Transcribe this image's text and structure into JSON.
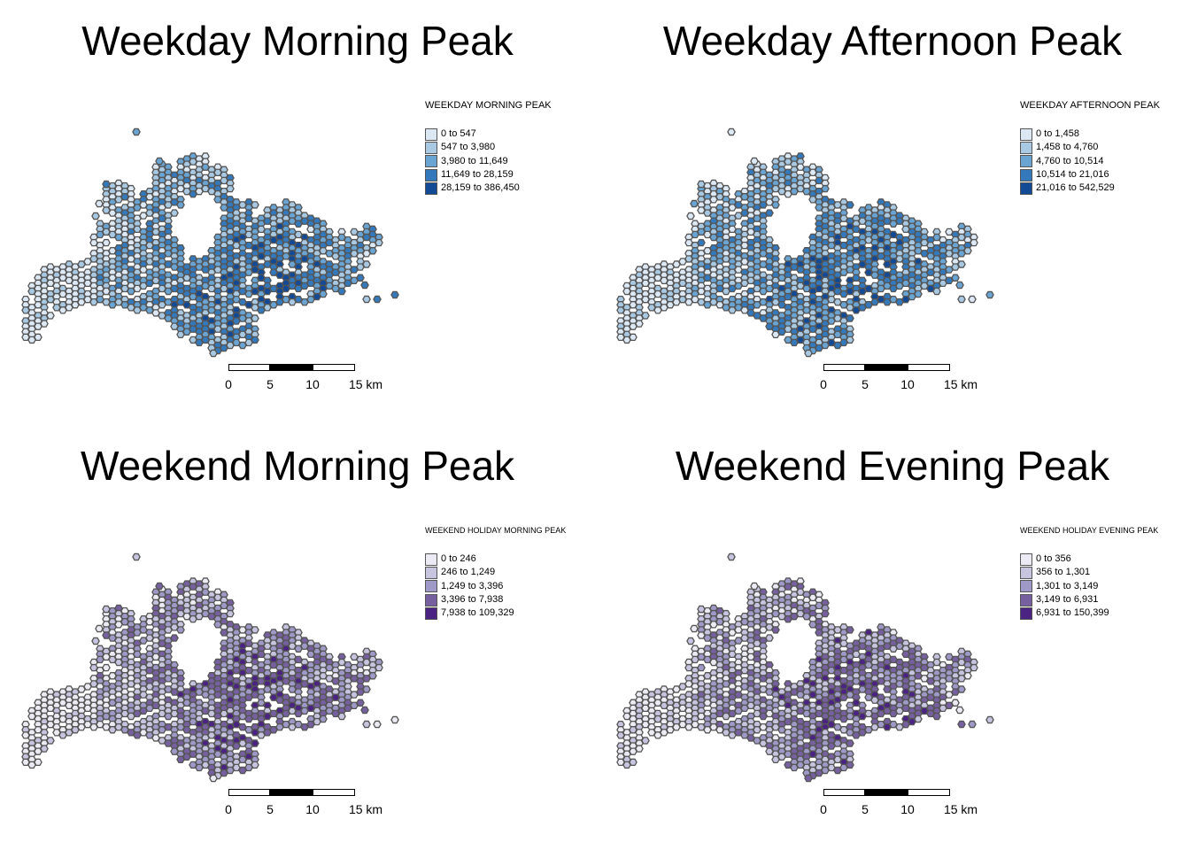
{
  "panels": [
    {
      "title": "Weekday Morning Peak",
      "legend_title": "WEEKDAY MORNING PEAK",
      "palette": "blues",
      "legend": [
        {
          "label": "0 to 547",
          "color": "#dde8f5"
        },
        {
          "label": "547 to 3,980",
          "color": "#a9c9e3"
        },
        {
          "label": "3,980 to 11,649",
          "color": "#6aa4d2"
        },
        {
          "label": "11,649 to 28,159",
          "color": "#3479bb"
        },
        {
          "label": "28,159 to 386,450",
          "color": "#134a96"
        }
      ]
    },
    {
      "title": "Weekday Afternoon Peak",
      "legend_title": "WEEKDAY AFTERNOON PEAK",
      "palette": "blues",
      "legend": [
        {
          "label": "0 to 1,458",
          "color": "#dde8f5"
        },
        {
          "label": "1,458 to 4,760",
          "color": "#a9c9e3"
        },
        {
          "label": "4,760 to 10,514",
          "color": "#6aa4d2"
        },
        {
          "label": "10,514 to 21,016",
          "color": "#3479bb"
        },
        {
          "label": "21,016 to 542,529",
          "color": "#134a96"
        }
      ]
    },
    {
      "title": "Weekend Morning Peak",
      "legend_title": "WEEKEND HOLIDAY MORNING PEAK",
      "palette": "purples",
      "legend": [
        {
          "label": "0 to 246",
          "color": "#ecebf3"
        },
        {
          "label": "246 to 1,249",
          "color": "#c6c4de"
        },
        {
          "label": "1,249 to 3,396",
          "color": "#9e99c7"
        },
        {
          "label": "3,396 to 7,938",
          "color": "#76609f"
        },
        {
          "label": "7,938 to 109,329",
          "color": "#4b2382"
        }
      ]
    },
    {
      "title": "Weekend Evening Peak",
      "legend_title": "WEEKEND HOLIDAY EVENING PEAK",
      "palette": "purples",
      "legend": [
        {
          "label": "0 to 356",
          "color": "#ecebf3"
        },
        {
          "label": "356 to 1,301",
          "color": "#c6c4de"
        },
        {
          "label": "1,301 to 3,149",
          "color": "#9e99c7"
        },
        {
          "label": "3,149 to 6,931",
          "color": "#76609f"
        },
        {
          "label": "6,931 to 150,399",
          "color": "#4b2382"
        }
      ]
    }
  ],
  "scalebar": {
    "ticks": [
      "0",
      "5",
      "10",
      "15 km"
    ]
  },
  "hexagon_outline_color": "#555555",
  "map_features": [
    "hexagon-grid-cells",
    "scale-bar"
  ]
}
